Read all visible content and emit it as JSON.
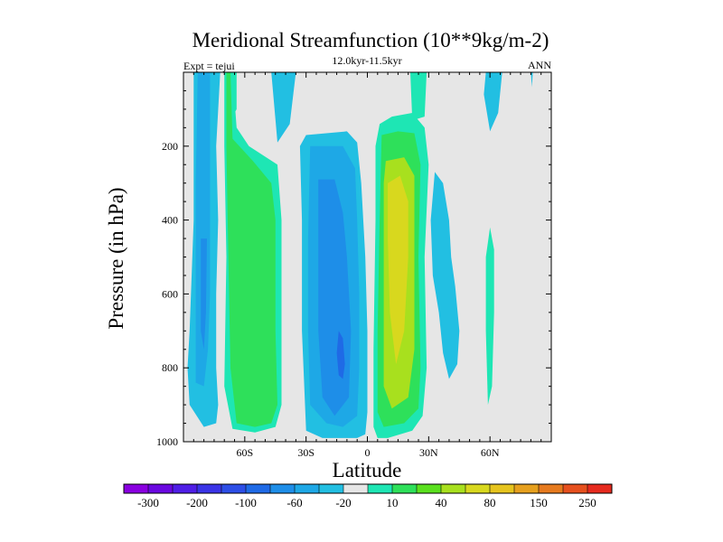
{
  "chart_data": {
    "type": "heatmap",
    "title": "Meridional Streamfunction (10**9kg/m-2)",
    "subtitle": "12.0kyr-11.5kyr",
    "left_label": "Expt = tejui",
    "right_label": "ANN",
    "xlabel": "Latitude",
    "ylabel": "Pressure (in hPa)",
    "xlim": [
      -90,
      90
    ],
    "ylim": [
      0,
      1000
    ],
    "x_ticks": [
      {
        "value": -60,
        "label": "60S"
      },
      {
        "value": -30,
        "label": "30S"
      },
      {
        "value": 0,
        "label": "0"
      },
      {
        "value": 30,
        "label": "30N"
      },
      {
        "value": 60,
        "label": "60N"
      }
    ],
    "y_ticks": [
      {
        "value": 200,
        "label": "200"
      },
      {
        "value": 400,
        "label": "400"
      },
      {
        "value": 600,
        "label": "600"
      },
      {
        "value": 800,
        "label": "800"
      },
      {
        "value": 1000,
        "label": "1000"
      }
    ],
    "colorbar": {
      "colors": [
        "#8a00e0",
        "#6a08e0",
        "#4f1ee6",
        "#3a34e6",
        "#2d4ee6",
        "#1f6ae6",
        "#1e8ee8",
        "#1ea8e6",
        "#22bfe2",
        "#e6e6e6",
        "#1ee6b4",
        "#2ee05a",
        "#5ae01e",
        "#a8e01e",
        "#d8d81e",
        "#e6c41e",
        "#e6a01e",
        "#e67a1e",
        "#e6501e",
        "#e62a1e"
      ],
      "labels": [
        {
          "edge": 1,
          "text": "-300"
        },
        {
          "edge": 3,
          "text": "-200"
        },
        {
          "edge": 5,
          "text": "-100"
        },
        {
          "edge": 7,
          "text": "-60"
        },
        {
          "edge": 9,
          "text": "-20"
        },
        {
          "edge": 11,
          "text": "10"
        },
        {
          "edge": 13,
          "text": "40"
        },
        {
          "edge": 15,
          "text": "80"
        },
        {
          "edge": 17,
          "text": "150"
        },
        {
          "edge": 19,
          "text": "250"
        }
      ]
    },
    "regions": [
      {
        "name": "nh-cyan-band",
        "value": -15,
        "color": "#22bfe2",
        "poly": [
          [
            58,
            0
          ],
          [
            66,
            0
          ],
          [
            64,
            110
          ],
          [
            60,
            160
          ],
          [
            57,
            60
          ]
        ]
      },
      {
        "name": "nh-edge-sliver",
        "value": -15,
        "color": "#22bfe2",
        "poly": [
          [
            80,
            0
          ],
          [
            81,
            0
          ],
          [
            80.5,
            40
          ]
        ]
      },
      {
        "name": "nh-lobe-cyan",
        "value": -15,
        "color": "#22bfe2",
        "poly": [
          [
            33,
            270
          ],
          [
            37,
            300
          ],
          [
            40,
            400
          ],
          [
            41,
            500
          ],
          [
            43,
            580
          ],
          [
            45,
            700
          ],
          [
            44,
            790
          ],
          [
            40,
            830
          ],
          [
            37,
            760
          ],
          [
            35,
            650
          ],
          [
            32,
            550
          ],
          [
            31,
            400
          ]
        ]
      },
      {
        "name": "nh-cyan-teal",
        "value": 15,
        "color": "#1ee6b4",
        "poly": [
          [
            60,
            420
          ],
          [
            62,
            480
          ],
          [
            62,
            650
          ],
          [
            61,
            850
          ],
          [
            59,
            900
          ],
          [
            58,
            700
          ],
          [
            58,
            500
          ]
        ]
      },
      {
        "name": "southern-cell-outer",
        "value": -25,
        "color": "#22bfe2",
        "poly": [
          [
            -85,
            0
          ],
          [
            -72,
            0
          ],
          [
            -74,
            200
          ],
          [
            -73,
            400
          ],
          [
            -74,
            600
          ],
          [
            -74,
            800
          ],
          [
            -73,
            900
          ],
          [
            -74,
            950
          ],
          [
            -80,
            960
          ],
          [
            -87,
            900
          ],
          [
            -88,
            800
          ],
          [
            -87,
            700
          ],
          [
            -85,
            400
          ],
          [
            -85,
            100
          ]
        ]
      },
      {
        "name": "southern-cell-inner",
        "value": -40,
        "color": "#1ea8e6",
        "poly": [
          [
            -83,
            0
          ],
          [
            -77,
            0
          ],
          [
            -77,
            200
          ],
          [
            -77,
            400
          ],
          [
            -77,
            600
          ],
          [
            -78,
            750
          ],
          [
            -80,
            850
          ],
          [
            -84,
            840
          ],
          [
            -84,
            600
          ],
          [
            -84,
            300
          ]
        ]
      },
      {
        "name": "southern-cell-core",
        "value": -80,
        "color": "#1e8ee8",
        "poly": [
          [
            -81.5,
            450
          ],
          [
            -78.5,
            450
          ],
          [
            -79,
            650
          ],
          [
            -80,
            750
          ],
          [
            -81.5,
            700
          ]
        ]
      },
      {
        "name": "ferrel-green-outer",
        "value": 12,
        "color": "#1ee6b4",
        "poly": [
          [
            -70,
            0
          ],
          [
            -66,
            0
          ],
          [
            -64,
            150
          ],
          [
            -58,
            200
          ],
          [
            -44,
            250
          ],
          [
            -42,
            400
          ],
          [
            -42,
            700
          ],
          [
            -42,
            900
          ],
          [
            -45,
            960
          ],
          [
            -55,
            975
          ],
          [
            -66,
            965
          ],
          [
            -70,
            850
          ],
          [
            -69,
            500
          ],
          [
            -70,
            200
          ]
        ]
      },
      {
        "name": "ferrel-green-inner",
        "value": 30,
        "color": "#2ee05a",
        "poly": [
          [
            -69,
            0
          ],
          [
            -67,
            0
          ],
          [
            -66,
            180
          ],
          [
            -56,
            240
          ],
          [
            -47,
            300
          ],
          [
            -45,
            400
          ],
          [
            -45,
            700
          ],
          [
            -44,
            900
          ],
          [
            -47,
            950
          ],
          [
            -55,
            960
          ],
          [
            -64,
            950
          ],
          [
            -67,
            800
          ],
          [
            -68,
            500
          ],
          [
            -69,
            200
          ]
        ]
      },
      {
        "name": "hadley-sh-outer",
        "value": -25,
        "color": "#22bfe2",
        "poly": [
          [
            -30,
            170
          ],
          [
            -10,
            160
          ],
          [
            -5,
            190
          ],
          [
            -3,
            300
          ],
          [
            -1,
            500
          ],
          [
            0,
            700
          ],
          [
            0,
            920
          ],
          [
            -1,
            980
          ],
          [
            -5,
            990
          ],
          [
            -13,
            990
          ],
          [
            -22,
            990
          ],
          [
            -30,
            970
          ],
          [
            -32,
            700
          ],
          [
            -32,
            400
          ],
          [
            -33,
            200
          ]
        ]
      },
      {
        "name": "hadley-sh-mid",
        "value": -40,
        "color": "#1ea8e6",
        "poly": [
          [
            -28,
            200
          ],
          [
            -12,
            200
          ],
          [
            -6,
            260
          ],
          [
            -5,
            400
          ],
          [
            -4,
            600
          ],
          [
            -4,
            800
          ],
          [
            -5,
            930
          ],
          [
            -12,
            960
          ],
          [
            -20,
            950
          ],
          [
            -28,
            900
          ],
          [
            -29,
            700
          ],
          [
            -29,
            450
          ]
        ]
      },
      {
        "name": "hadley-sh-inner",
        "value": -80,
        "color": "#1e8ee8",
        "poly": [
          [
            -24,
            290
          ],
          [
            -16,
            290
          ],
          [
            -12,
            380
          ],
          [
            -10,
            500
          ],
          [
            -8,
            700
          ],
          [
            -9,
            880
          ],
          [
            -16,
            930
          ],
          [
            -22,
            880
          ],
          [
            -24,
            700
          ],
          [
            -24,
            450
          ]
        ]
      },
      {
        "name": "hadley-sh-core",
        "value": -110,
        "color": "#1f6ae6",
        "poly": [
          [
            -14,
            700
          ],
          [
            -12,
            720
          ],
          [
            -11,
            790
          ],
          [
            -12,
            830
          ],
          [
            -14,
            820
          ],
          [
            -15,
            760
          ]
        ]
      },
      {
        "name": "hadley-nh-outer",
        "value": 12,
        "color": "#1ee6b4",
        "poly": [
          [
            6,
            140
          ],
          [
            12,
            120
          ],
          [
            22,
            110
          ],
          [
            28,
            150
          ],
          [
            30,
            250
          ],
          [
            28,
            500
          ],
          [
            29,
            800
          ],
          [
            27,
            930
          ],
          [
            22,
            970
          ],
          [
            10,
            990
          ],
          [
            5,
            990
          ],
          [
            3,
            960
          ],
          [
            3,
            750
          ],
          [
            4,
            400
          ],
          [
            4,
            200
          ]
        ]
      },
      {
        "name": "hadley-nh-mid",
        "value": 30,
        "color": "#2ee05a",
        "poly": [
          [
            7,
            170
          ],
          [
            15,
            160
          ],
          [
            23,
            165
          ],
          [
            26,
            250
          ],
          [
            25,
            500
          ],
          [
            26,
            800
          ],
          [
            25,
            910
          ],
          [
            18,
            950
          ],
          [
            8,
            960
          ],
          [
            5,
            920
          ],
          [
            5,
            700
          ],
          [
            6,
            400
          ]
        ]
      },
      {
        "name": "hadley-nh-inner",
        "value": 50,
        "color": "#a8e01e",
        "poly": [
          [
            9,
            240
          ],
          [
            18,
            230
          ],
          [
            23,
            280
          ],
          [
            23,
            500
          ],
          [
            23,
            750
          ],
          [
            20,
            880
          ],
          [
            12,
            910
          ],
          [
            8,
            850
          ],
          [
            8,
            550
          ],
          [
            8,
            300
          ]
        ]
      },
      {
        "name": "hadley-nh-core",
        "value": 75,
        "color": "#d8d81e",
        "poly": [
          [
            10,
            300
          ],
          [
            16,
            280
          ],
          [
            20,
            350
          ],
          [
            20,
            500
          ],
          [
            18,
            700
          ],
          [
            14,
            790
          ],
          [
            11,
            650
          ],
          [
            10,
            450
          ]
        ]
      },
      {
        "name": "top-green-strip-left",
        "value": 12,
        "color": "#1ee6b4",
        "poly": [
          [
            -66,
            0
          ],
          [
            -64,
            0
          ],
          [
            -64,
            100
          ],
          [
            -66,
            120
          ]
        ]
      },
      {
        "name": "top-green-strip-right",
        "value": 12,
        "color": "#1ee6b4",
        "poly": [
          [
            21,
            0
          ],
          [
            29,
            0
          ],
          [
            28,
            120
          ],
          [
            22,
            130
          ]
        ]
      },
      {
        "name": "top-cyan-strip",
        "value": -15,
        "color": "#22bfe2",
        "poly": [
          [
            -47,
            0
          ],
          [
            -35,
            0
          ],
          [
            -38,
            140
          ],
          [
            -44,
            190
          ]
        ]
      }
    ]
  }
}
